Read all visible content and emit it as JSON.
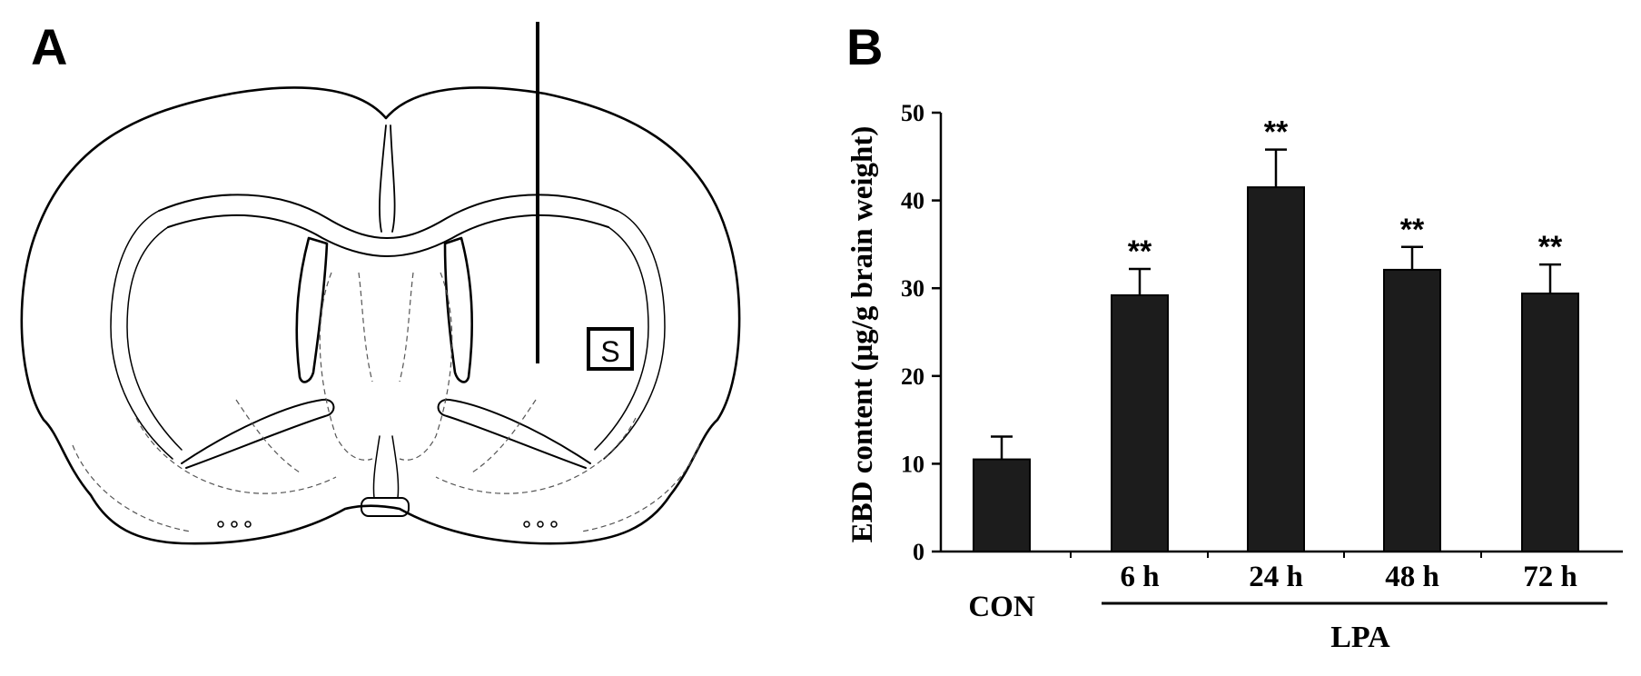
{
  "panels": {
    "a_label": "A",
    "b_label": "B"
  },
  "diagram": {
    "region_label": "S"
  },
  "chart_data": {
    "type": "bar",
    "categories": [
      "CON",
      "6 h",
      "24 h",
      "48 h",
      "72 h"
    ],
    "values": [
      10.5,
      29.2,
      41.5,
      32.1,
      29.4
    ],
    "errors": [
      2.6,
      3.0,
      4.3,
      2.6,
      3.3
    ],
    "significance": [
      "",
      "**",
      "**",
      "**",
      "**"
    ],
    "group_label": "LPA",
    "ylabel": "EBD content (μg/g brain weight)",
    "ylim": [
      0,
      50
    ],
    "yticks": [
      "0",
      "10",
      "20",
      "30",
      "40",
      "50"
    ],
    "bar_color": "#1c1c1c"
  }
}
